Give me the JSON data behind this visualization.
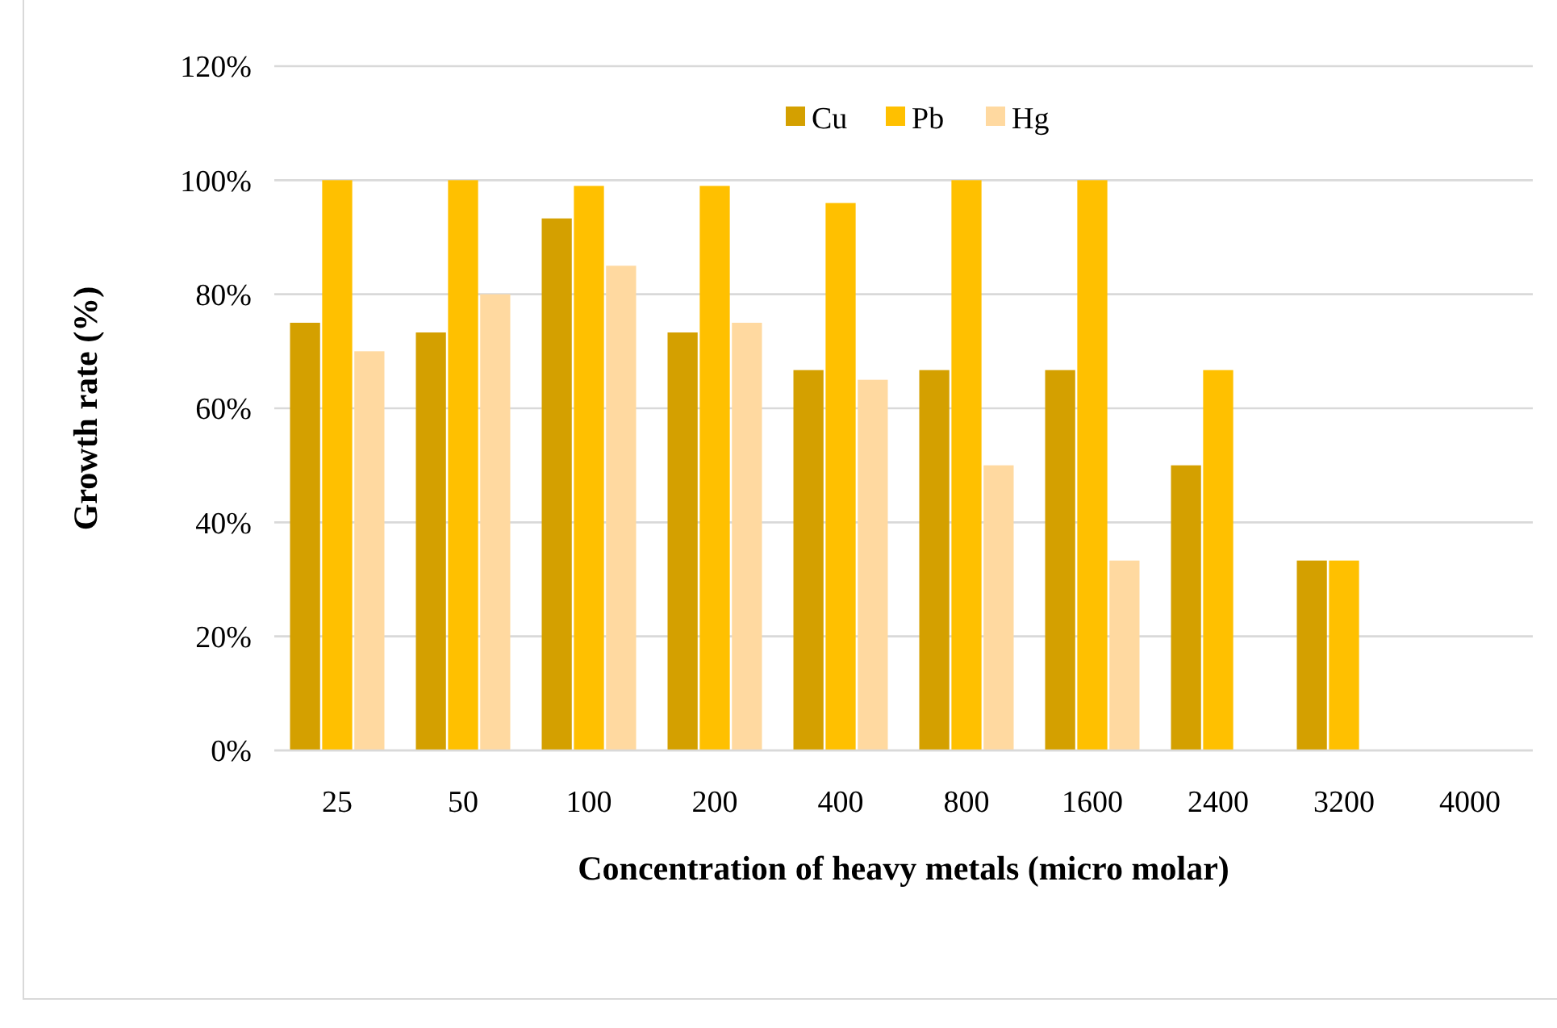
{
  "chart_data": {
    "type": "bar",
    "xlabel": "Concentration of heavy metals (micro molar)",
    "ylabel": "Growth rate (%)",
    "categories": [
      "25",
      "50",
      "100",
      "200",
      "400",
      "800",
      "1600",
      "2400",
      "3200",
      "4000"
    ],
    "series": [
      {
        "name": "Cu",
        "color": "#d4a000",
        "values": [
          75,
          73.3,
          93.3,
          73.3,
          66.7,
          66.7,
          66.7,
          50,
          33.3,
          0
        ]
      },
      {
        "name": "Pb",
        "color": "#ffc000",
        "values": [
          100,
          100,
          99,
          99,
          96,
          100,
          100,
          66.7,
          33.3,
          0
        ]
      },
      {
        "name": "Hg",
        "color": "#ffd9a0",
        "values": [
          70,
          80,
          85,
          75,
          65,
          50,
          33.3,
          0,
          0,
          0
        ]
      }
    ],
    "ylim": [
      0,
      120
    ],
    "yticks": [
      {
        "value": 0,
        "label": "0%"
      },
      {
        "value": 20,
        "label": "20%"
      },
      {
        "value": 40,
        "label": "40%"
      },
      {
        "value": 60,
        "label": "60%"
      },
      {
        "value": 80,
        "label": "80%"
      },
      {
        "value": 100,
        "label": "100%"
      },
      {
        "value": 120,
        "label": "120%"
      }
    ],
    "grid": "y",
    "legend": "top"
  }
}
